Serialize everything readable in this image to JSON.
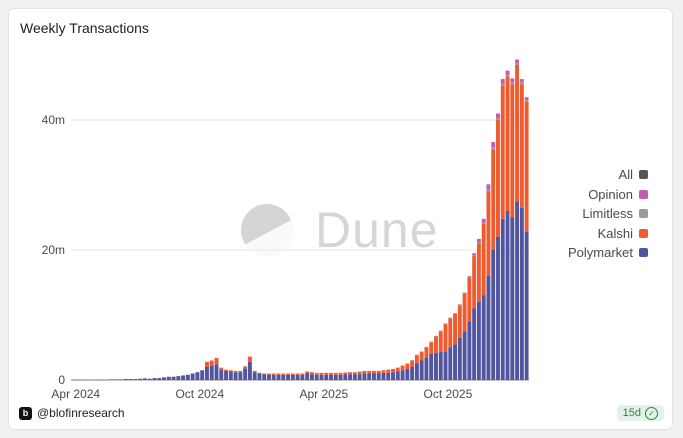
{
  "card": {
    "title": "Weekly Transactions",
    "handle": "@blofinresearch",
    "badge": "15d",
    "watermark": "Dune"
  },
  "colors": {
    "polymarket": "#5155a0",
    "kalshi": "#f05a2f",
    "limitless": "#9a9a9a",
    "opinion": "#c55ab0",
    "all": "#555555",
    "grid": "#e6e6e6"
  },
  "chart_data": {
    "type": "bar",
    "stacked": true,
    "title": "Weekly Transactions",
    "x_start": "2024-03-25",
    "x_interval": "week",
    "xticks": [
      "Apr 2024",
      "Oct 2024",
      "Apr 2025",
      "Oct 2025"
    ],
    "yticks": [
      "0",
      "20m",
      "40m"
    ],
    "ylim": [
      0,
      50000000
    ],
    "grid": true,
    "legend_position": "right",
    "legend": [
      "All",
      "Opinion",
      "Limitless",
      "Kalshi",
      "Polymarket"
    ],
    "series": [
      {
        "name": "Polymarket",
        "color": "#5155a0",
        "values": [
          0.05,
          0.05,
          0.05,
          0.05,
          0.05,
          0.05,
          0.05,
          0.05,
          0.1,
          0.1,
          0.1,
          0.15,
          0.15,
          0.15,
          0.2,
          0.25,
          0.2,
          0.3,
          0.3,
          0.4,
          0.5,
          0.5,
          0.6,
          0.7,
          0.8,
          1.0,
          1.2,
          1.5,
          2.0,
          2.2,
          2.4,
          1.6,
          1.4,
          1.3,
          1.2,
          1.2,
          1.8,
          2.8,
          1.2,
          1.0,
          0.9,
          0.8,
          0.8,
          0.8,
          0.8,
          0.8,
          0.8,
          0.8,
          0.8,
          1.0,
          0.9,
          0.8,
          0.8,
          0.8,
          0.8,
          0.8,
          0.8,
          0.85,
          0.9,
          0.9,
          0.9,
          1.0,
          1.0,
          1.0,
          1.0,
          1.1,
          1.1,
          1.2,
          1.3,
          1.5,
          1.7,
          2.0,
          2.6,
          3.0,
          3.5,
          4.0,
          4.2,
          4.3,
          4.4,
          5.0,
          5.5,
          6.5,
          7.5,
          9.0,
          11.0,
          12.0,
          13.0,
          16.0,
          20.0,
          22.0,
          24.8,
          26.0,
          25.0,
          27.5,
          26.5,
          22.8
        ]
      },
      {
        "name": "Kalshi",
        "color": "#f05a2f",
        "values": [
          0,
          0,
          0,
          0,
          0,
          0,
          0,
          0,
          0,
          0,
          0,
          0,
          0,
          0,
          0,
          0,
          0,
          0,
          0,
          0,
          0,
          0,
          0,
          0,
          0,
          0,
          0,
          0,
          0.8,
          0.8,
          1.0,
          0.3,
          0.2,
          0.2,
          0.2,
          0.2,
          0.3,
          0.8,
          0.2,
          0.1,
          0.1,
          0.2,
          0.2,
          0.2,
          0.2,
          0.2,
          0.2,
          0.2,
          0.2,
          0.3,
          0.3,
          0.3,
          0.3,
          0.3,
          0.3,
          0.3,
          0.3,
          0.3,
          0.3,
          0.3,
          0.4,
          0.4,
          0.4,
          0.4,
          0.4,
          0.4,
          0.5,
          0.5,
          0.6,
          0.7,
          0.8,
          1.0,
          1.2,
          1.3,
          1.5,
          1.8,
          2.5,
          3.2,
          4.2,
          4.5,
          4.7,
          5.0,
          5.8,
          6.8,
          8.0,
          9.0,
          11.0,
          13.0,
          15.5,
          18.0,
          20.5,
          20.7,
          20.5,
          21.0,
          19.0,
          20.0
        ]
      },
      {
        "name": "Limitless",
        "color": "#9a9a9a",
        "values": [
          0,
          0,
          0,
          0,
          0,
          0,
          0,
          0,
          0,
          0,
          0,
          0,
          0,
          0,
          0,
          0,
          0,
          0,
          0,
          0,
          0,
          0,
          0,
          0,
          0,
          0,
          0,
          0,
          0,
          0,
          0,
          0,
          0,
          0,
          0,
          0,
          0,
          0,
          0,
          0,
          0,
          0,
          0,
          0,
          0,
          0,
          0,
          0,
          0,
          0,
          0,
          0,
          0,
          0,
          0,
          0,
          0,
          0,
          0,
          0,
          0,
          0,
          0,
          0,
          0,
          0,
          0,
          0,
          0,
          0.05,
          0.05,
          0.05,
          0.1,
          0.1,
          0.1,
          0.1,
          0.1,
          0.1,
          0.1,
          0.1,
          0.1,
          0.15,
          0.15,
          0.2,
          0.2,
          0.2,
          0.2,
          0.3,
          0.3,
          0.3,
          0.3,
          0.3,
          0.3,
          0.3,
          0.3,
          0.3
        ]
      },
      {
        "name": "Opinion",
        "color": "#c55ab0",
        "values": [
          0,
          0,
          0,
          0,
          0,
          0,
          0,
          0,
          0,
          0,
          0,
          0,
          0,
          0,
          0,
          0,
          0,
          0,
          0,
          0,
          0,
          0,
          0,
          0,
          0,
          0,
          0,
          0,
          0,
          0,
          0,
          0,
          0,
          0,
          0,
          0,
          0,
          0,
          0,
          0,
          0,
          0,
          0,
          0,
          0,
          0,
          0,
          0,
          0,
          0,
          0,
          0,
          0,
          0,
          0,
          0,
          0,
          0,
          0,
          0,
          0,
          0,
          0,
          0,
          0,
          0,
          0,
          0,
          0,
          0,
          0,
          0,
          0,
          0,
          0,
          0,
          0,
          0,
          0,
          0,
          0,
          0,
          0,
          0,
          0.3,
          0.5,
          0.6,
          0.8,
          0.8,
          0.7,
          0.7,
          0.6,
          0.6,
          0.5,
          0.5,
          0.4
        ]
      }
    ]
  }
}
